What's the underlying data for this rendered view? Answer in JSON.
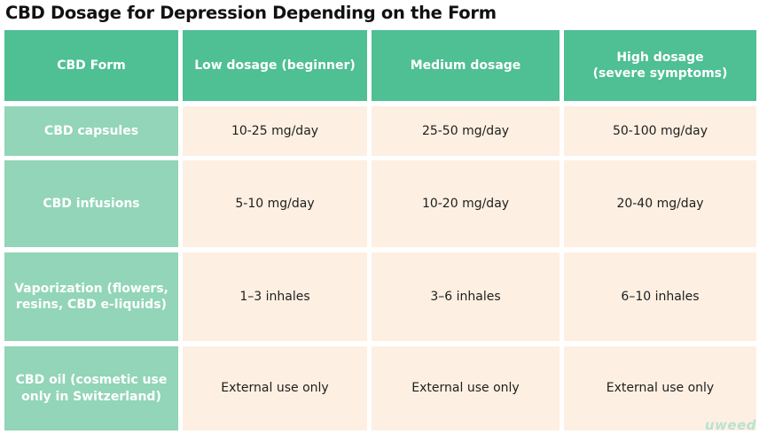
{
  "title": "CBD Dosage for Depression Depending on the Form",
  "table": {
    "headers": [
      "CBD Form",
      "Low dosage (beginner)",
      "Medium dosage",
      "High dosage\n(severe symptoms)"
    ],
    "rows": [
      {
        "form": "CBD capsules",
        "low": "10-25 mg/day",
        "medium": "25-50 mg/day",
        "high": "50-100 mg/day"
      },
      {
        "form": "CBD infusions",
        "low": "5-10 mg/day",
        "medium": "10-20 mg/day",
        "high": "20-40 mg/day"
      },
      {
        "form": "Vaporization (flowers, resins, CBD e-liquids)",
        "low": "1–3 inhales",
        "medium": "3–6 inhales",
        "high": "6–10 inhales"
      },
      {
        "form": "CBD oil (cosmetic use only in Switzerland)",
        "low": "External use only",
        "medium": "External use only",
        "high": "External use only"
      }
    ]
  },
  "logo": "uweed",
  "colors": {
    "header_bg": "#4fbf94",
    "row_header_bg": "#92d5b8",
    "value_bg": "#fdf0e2"
  }
}
